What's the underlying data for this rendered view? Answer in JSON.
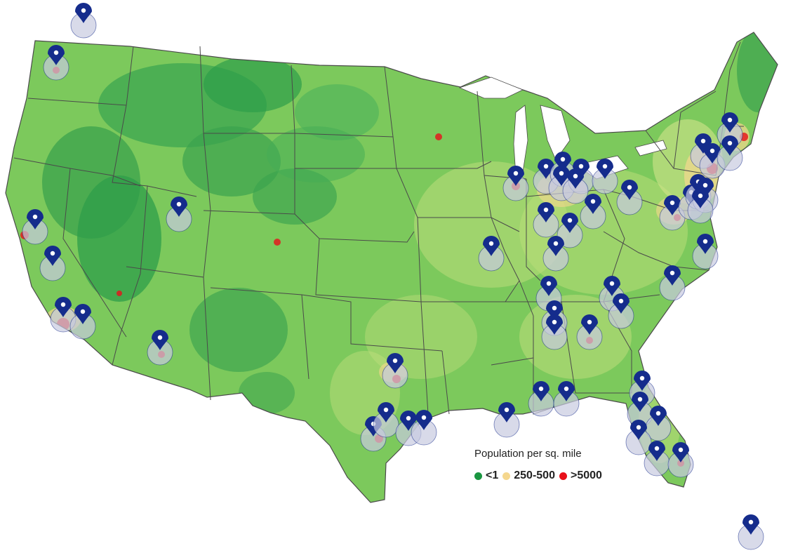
{
  "legend": {
    "title": "Population per sq. mile",
    "items": [
      {
        "label": "<1",
        "color": "#1a9641"
      },
      {
        "label": "250-500",
        "color": "#f5d78e"
      },
      {
        "label": ">5000",
        "color": "#e8101a"
      }
    ]
  },
  "colors": {
    "land_base": "#7cc95c",
    "land_dark": "#2e9e4a",
    "land_light": "#b8dc78",
    "urban": "#e8101a",
    "marker": "#152c8c",
    "marker_halo": "#c7cbe0",
    "border": "#4a4a4a"
  },
  "markers_icon": "map-pin-icon"
}
